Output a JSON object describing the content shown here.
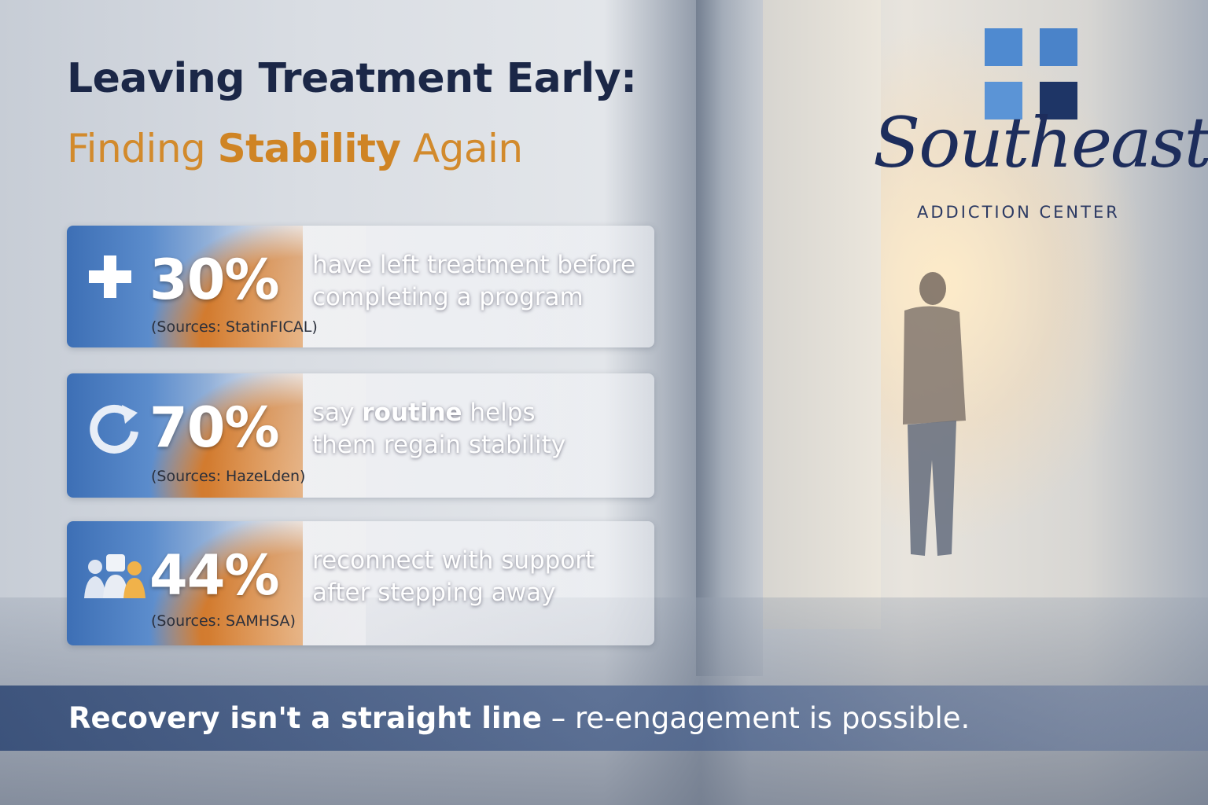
{
  "header": {
    "title": "Leaving Treatment Early:",
    "subtitle_start": "Finding",
    "subtitle_bold": "Stability",
    "subtitle_end": "Again"
  },
  "logo": {
    "name": "Southeast",
    "tagline": "ADDICTION CENTER"
  },
  "stats": [
    {
      "value": "30%",
      "line1_start": "have left treatment before",
      "line1_bold": "",
      "line1_end": "",
      "line2": "completing a program",
      "source": "(Sources: StatinFICAL)"
    },
    {
      "value": "70%",
      "line1_start": "say",
      "line1_bold": "routine",
      "line1_end": "helps",
      "line2": "them regain stability",
      "source": "(Sources: HazeLden)"
    },
    {
      "value": "44%",
      "line1_start": "reconnect with support",
      "line1_bold": "",
      "line1_end": "",
      "line2": "after stepping away",
      "source": "(Sources: SAMHSA)"
    }
  ],
  "footer": {
    "bold": "Recovery isn't a straight line",
    "rest": "– re-engagement is possible."
  }
}
